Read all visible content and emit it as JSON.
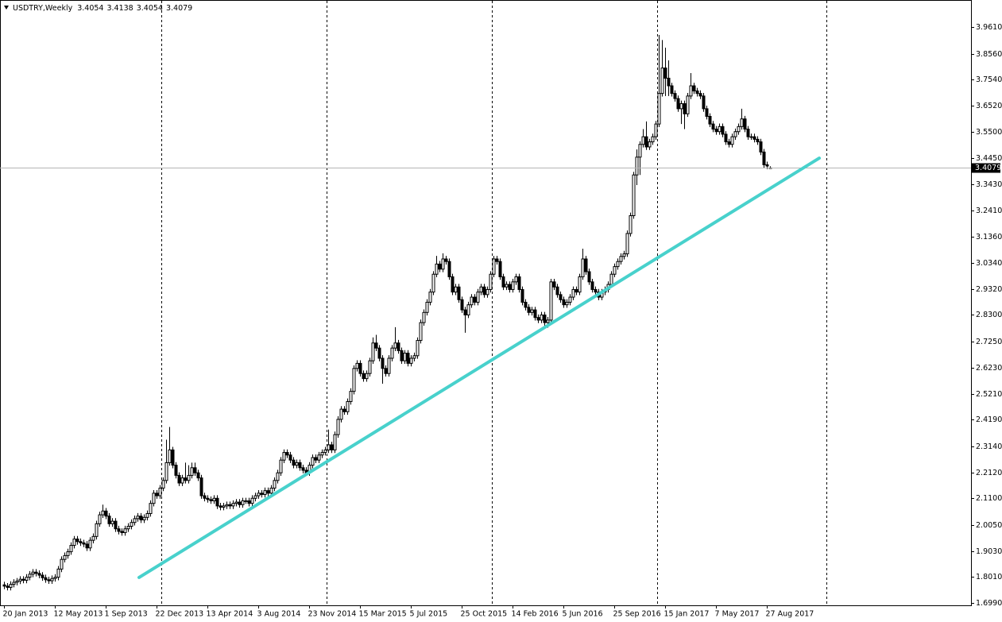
{
  "chart_data": {
    "type": "candlestick",
    "title": "USDTRY,Weekly",
    "color_up": "#ffffff",
    "color_down": "#000000",
    "wick_color": "#000000",
    "xlim": [
      -1.25,
      304.25
    ],
    "ylim": [
      1.6896,
      4.0671
    ],
    "yticks": [
      {
        "value": 3.961,
        "label": "3.9610"
      },
      {
        "value": 3.856,
        "label": "3.8560"
      },
      {
        "value": 3.754,
        "label": "3.7540"
      },
      {
        "value": 3.652,
        "label": "3.6520"
      },
      {
        "value": 3.55,
        "label": "3.5500"
      },
      {
        "value": 3.445,
        "label": "3.4450"
      },
      {
        "value": 3.343,
        "label": "3.3430"
      },
      {
        "value": 3.241,
        "label": "3.2410"
      },
      {
        "value": 3.136,
        "label": "3.1360"
      },
      {
        "value": 3.034,
        "label": "3.0340"
      },
      {
        "value": 2.932,
        "label": "2.9320"
      },
      {
        "value": 2.83,
        "label": "2.8300"
      },
      {
        "value": 2.725,
        "label": "2.7250"
      },
      {
        "value": 2.623,
        "label": "2.6230"
      },
      {
        "value": 2.521,
        "label": "2.5210"
      },
      {
        "value": 2.419,
        "label": "2.4190"
      },
      {
        "value": 2.314,
        "label": "2.3140"
      },
      {
        "value": 2.212,
        "label": "2.2120"
      },
      {
        "value": 2.11,
        "label": "2.1100"
      },
      {
        "value": 2.005,
        "label": "2.0050"
      },
      {
        "value": 1.903,
        "label": "1.9030"
      },
      {
        "value": 1.801,
        "label": "1.8010"
      },
      {
        "value": 1.699,
        "label": "1.6990"
      }
    ],
    "xticks": [
      {
        "value": 0,
        "label": "20 Jan 2013"
      },
      {
        "value": 16,
        "label": "12 May 2013"
      },
      {
        "value": 32,
        "label": "1 Sep 2013"
      },
      {
        "value": 48,
        "label": "22 Dec 2013"
      },
      {
        "value": 64,
        "label": "13 Apr 2014"
      },
      {
        "value": 80,
        "label": "3 Aug 2014"
      },
      {
        "value": 96,
        "label": "23 Nov 2014"
      },
      {
        "value": 112,
        "label": "15 Mar 2015"
      },
      {
        "value": 128,
        "label": "5 Jul 2015"
      },
      {
        "value": 144,
        "label": "25 Oct 2015"
      },
      {
        "value": 160,
        "label": "14 Feb 2016"
      },
      {
        "value": 176,
        "label": "5 Jun 2016"
      },
      {
        "value": 192,
        "label": "25 Sep 2016"
      },
      {
        "value": 208,
        "label": "15 Jan 2017"
      },
      {
        "value": 224,
        "label": "7 May 2017"
      },
      {
        "value": 240,
        "label": "27 Aug 2017"
      }
    ],
    "open": [
      1.77,
      1.765,
      1.76,
      1.772,
      1.78,
      1.785,
      1.792,
      1.788,
      1.8,
      1.812,
      1.82,
      1.815,
      1.808,
      1.798,
      1.79,
      1.786,
      1.795,
      1.8,
      1.832,
      1.87,
      1.885,
      1.9,
      1.925,
      1.95,
      1.94,
      1.935,
      1.93,
      1.915,
      1.945,
      1.96,
      2.01,
      2.045,
      2.06,
      2.04,
      2.01,
      2.02,
      1.99,
      1.98,
      1.975,
      1.99,
      2.0,
      2.015,
      2.03,
      2.04,
      2.025,
      2.035,
      2.05,
      2.09,
      2.13,
      2.12,
      2.15,
      2.18,
      2.25,
      2.3,
      2.24,
      2.2,
      2.17,
      2.19,
      2.18,
      2.2,
      2.23,
      2.21,
      2.19,
      2.12,
      2.11,
      2.105,
      2.1,
      2.11,
      2.08,
      2.075,
      2.08,
      2.085,
      2.08,
      2.09,
      2.095,
      2.085,
      2.1,
      2.1,
      2.09,
      2.11,
      2.12,
      2.13,
      2.125,
      2.14,
      2.13,
      2.15,
      2.18,
      2.21,
      2.26,
      2.29,
      2.28,
      2.26,
      2.24,
      2.25,
      2.23,
      2.22,
      2.21,
      2.24,
      2.27,
      2.26,
      2.28,
      2.29,
      2.3,
      2.32,
      2.3,
      2.36,
      2.42,
      2.46,
      2.45,
      2.49,
      2.53,
      2.62,
      2.64,
      2.6,
      2.58,
      2.6,
      2.65,
      2.72,
      2.7,
      2.66,
      2.62,
      2.6,
      2.66,
      2.7,
      2.72,
      2.69,
      2.65,
      2.68,
      2.64,
      2.66,
      2.67,
      2.73,
      2.8,
      2.84,
      2.88,
      2.92,
      2.99,
      3.03,
      3.01,
      3.05,
      3.04,
      2.98,
      2.92,
      2.94,
      2.89,
      2.85,
      2.83,
      2.87,
      2.9,
      2.88,
      2.92,
      2.94,
      2.91,
      2.93,
      2.99,
      3.05,
      3.04,
      2.98,
      2.94,
      2.95,
      2.93,
      2.96,
      2.98,
      2.93,
      2.88,
      2.86,
      2.84,
      2.85,
      2.82,
      2.81,
      2.83,
      2.8,
      2.81,
      2.96,
      2.94,
      2.91,
      2.89,
      2.87,
      2.88,
      2.9,
      2.93,
      2.92,
      2.98,
      3.05,
      3.0,
      2.96,
      2.93,
      2.92,
      2.9,
      2.92,
      2.93,
      2.95,
      2.99,
      3.02,
      3.04,
      3.06,
      3.07,
      3.15,
      3.22,
      3.38,
      3.45,
      3.5,
      3.53,
      3.49,
      3.51,
      3.53,
      3.58,
      3.7,
      3.8,
      3.76,
      3.73,
      3.7,
      3.68,
      3.64,
      3.66,
      3.62,
      3.69,
      3.73,
      3.71,
      3.7,
      3.69,
      3.64,
      3.61,
      3.58,
      3.56,
      3.55,
      3.57,
      3.54,
      3.51,
      3.5,
      3.53,
      3.55,
      3.57,
      3.6,
      3.56,
      3.53,
      3.53,
      3.52,
      3.51,
      3.47,
      3.42,
      3.4054
    ],
    "high": [
      1.782,
      1.777,
      1.784,
      1.792,
      1.797,
      1.804,
      1.804,
      1.812,
      1.824,
      1.832,
      1.832,
      1.827,
      1.82,
      1.81,
      1.802,
      1.807,
      1.812,
      1.844,
      1.882,
      1.897,
      1.912,
      1.937,
      1.962,
      1.962,
      1.952,
      1.947,
      1.942,
      1.957,
      1.972,
      2.022,
      2.057,
      2.085,
      2.072,
      2.052,
      2.032,
      2.032,
      2.002,
      1.992,
      2.002,
      2.012,
      2.027,
      2.042,
      2.052,
      2.052,
      2.047,
      2.062,
      2.102,
      2.142,
      2.142,
      2.162,
      2.192,
      2.34,
      2.39,
      2.312,
      2.252,
      2.212,
      2.202,
      2.25,
      2.24,
      2.25,
      2.25,
      2.222,
      2.202,
      2.132,
      2.122,
      2.117,
      2.122,
      2.122,
      2.092,
      2.092,
      2.097,
      2.097,
      2.102,
      2.107,
      2.107,
      2.112,
      2.112,
      2.112,
      2.122,
      2.132,
      2.142,
      2.142,
      2.152,
      2.152,
      2.162,
      2.192,
      2.222,
      2.272,
      2.302,
      2.302,
      2.292,
      2.272,
      2.262,
      2.262,
      2.242,
      2.232,
      2.252,
      2.282,
      2.282,
      2.292,
      2.302,
      2.312,
      2.38,
      2.332,
      2.372,
      2.432,
      2.472,
      2.472,
      2.502,
      2.542,
      2.632,
      2.652,
      2.652,
      2.612,
      2.612,
      2.662,
      2.742,
      2.752,
      2.712,
      2.672,
      2.632,
      2.672,
      2.712,
      2.782,
      2.732,
      2.702,
      2.692,
      2.692,
      2.672,
      2.682,
      2.742,
      2.812,
      2.852,
      2.892,
      2.932,
      3.002,
      3.062,
      3.042,
      3.072,
      3.062,
      3.052,
      2.992,
      2.952,
      2.952,
      2.902,
      2.862,
      2.882,
      2.912,
      2.912,
      2.932,
      2.952,
      2.952,
      2.942,
      3.002,
      3.062,
      3.062,
      3.052,
      2.992,
      2.962,
      2.962,
      2.972,
      2.992,
      2.992,
      2.942,
      2.892,
      2.872,
      2.862,
      2.862,
      2.832,
      2.842,
      2.842,
      2.822,
      2.972,
      2.972,
      2.952,
      2.922,
      2.902,
      2.892,
      2.912,
      2.942,
      2.942,
      2.992,
      3.09,
      3.062,
      3.012,
      2.972,
      2.942,
      2.932,
      2.932,
      2.942,
      2.962,
      3.002,
      3.032,
      3.052,
      3.072,
      3.082,
      3.162,
      3.232,
      3.392,
      3.48,
      3.512,
      3.56,
      3.59,
      3.522,
      3.542,
      3.592,
      3.93,
      3.91,
      3.88,
      3.83,
      3.742,
      3.712,
      3.692,
      3.672,
      3.672,
      3.702,
      3.78,
      3.742,
      3.722,
      3.712,
      3.702,
      3.652,
      3.622,
      3.592,
      3.572,
      3.582,
      3.582,
      3.552,
      3.522,
      3.542,
      3.562,
      3.582,
      3.64,
      3.612,
      3.572,
      3.542,
      3.542,
      3.532,
      3.522,
      3.482,
      3.432,
      3.4138
    ],
    "low": [
      1.753,
      1.748,
      1.748,
      1.76,
      1.768,
      1.773,
      1.776,
      1.776,
      1.788,
      1.8,
      1.803,
      1.796,
      1.786,
      1.778,
      1.774,
      1.774,
      1.783,
      1.788,
      1.82,
      1.858,
      1.873,
      1.888,
      1.913,
      1.928,
      1.923,
      1.918,
      1.903,
      1.903,
      1.933,
      1.948,
      1.998,
      2.033,
      2.028,
      1.998,
      1.998,
      1.978,
      1.968,
      1.963,
      1.963,
      1.978,
      1.988,
      2.003,
      2.018,
      2.013,
      2.013,
      2.023,
      2.038,
      2.078,
      2.108,
      2.108,
      2.138,
      2.168,
      2.238,
      2.228,
      2.188,
      2.158,
      2.158,
      2.168,
      2.168,
      2.188,
      2.198,
      2.178,
      2.108,
      2.098,
      2.093,
      2.088,
      2.088,
      2.068,
      2.063,
      2.063,
      2.068,
      2.068,
      2.068,
      2.078,
      2.073,
      2.073,
      2.088,
      2.078,
      2.078,
      2.098,
      2.108,
      2.113,
      2.113,
      2.118,
      2.118,
      2.138,
      2.168,
      2.198,
      2.248,
      2.268,
      2.248,
      2.228,
      2.228,
      2.218,
      2.208,
      2.198,
      2.198,
      2.228,
      2.248,
      2.248,
      2.268,
      2.278,
      2.288,
      2.288,
      2.288,
      2.348,
      2.408,
      2.438,
      2.438,
      2.478,
      2.518,
      2.608,
      2.588,
      2.568,
      2.568,
      2.588,
      2.638,
      2.688,
      2.648,
      2.56,
      2.588,
      2.588,
      2.648,
      2.688,
      2.678,
      2.638,
      2.638,
      2.628,
      2.628,
      2.648,
      2.658,
      2.718,
      2.788,
      2.828,
      2.868,
      2.908,
      2.978,
      2.998,
      2.998,
      3.028,
      2.968,
      2.908,
      2.908,
      2.878,
      2.838,
      2.76,
      2.818,
      2.858,
      2.868,
      2.868,
      2.908,
      2.898,
      2.898,
      2.918,
      2.978,
      3.028,
      2.968,
      2.928,
      2.928,
      2.918,
      2.918,
      2.948,
      2.918,
      2.868,
      2.848,
      2.828,
      2.828,
      2.808,
      2.798,
      2.798,
      2.788,
      2.78,
      2.798,
      2.928,
      2.898,
      2.878,
      2.858,
      2.858,
      2.868,
      2.888,
      2.908,
      2.908,
      2.968,
      2.988,
      2.948,
      2.918,
      2.908,
      2.888,
      2.888,
      2.908,
      2.918,
      2.938,
      2.978,
      3.008,
      3.028,
      3.048,
      3.058,
      3.138,
      3.208,
      3.34,
      3.38,
      3.488,
      3.478,
      3.478,
      3.498,
      3.518,
      3.568,
      3.688,
      3.69,
      3.69,
      3.688,
      3.668,
      3.628,
      3.58,
      3.56,
      3.608,
      3.678,
      3.698,
      3.688,
      3.678,
      3.628,
      3.598,
      3.568,
      3.548,
      3.538,
      3.538,
      3.528,
      3.498,
      3.488,
      3.488,
      3.518,
      3.538,
      3.558,
      3.548,
      3.518,
      3.518,
      3.508,
      3.498,
      3.458,
      3.408,
      3.403,
      3.4054
    ],
    "close": [
      1.765,
      1.76,
      1.772,
      1.78,
      1.785,
      1.792,
      1.788,
      1.8,
      1.812,
      1.82,
      1.815,
      1.808,
      1.798,
      1.79,
      1.786,
      1.795,
      1.8,
      1.832,
      1.87,
      1.885,
      1.9,
      1.925,
      1.95,
      1.94,
      1.935,
      1.93,
      1.915,
      1.945,
      1.96,
      2.01,
      2.045,
      2.06,
      2.04,
      2.01,
      2.02,
      1.99,
      1.98,
      1.975,
      1.99,
      2.0,
      2.015,
      2.03,
      2.04,
      2.025,
      2.035,
      2.05,
      2.09,
      2.13,
      2.12,
      2.15,
      2.18,
      2.25,
      2.3,
      2.24,
      2.2,
      2.17,
      2.19,
      2.18,
      2.2,
      2.23,
      2.21,
      2.19,
      2.12,
      2.11,
      2.105,
      2.1,
      2.11,
      2.08,
      2.075,
      2.08,
      2.085,
      2.08,
      2.09,
      2.095,
      2.085,
      2.1,
      2.1,
      2.09,
      2.11,
      2.12,
      2.13,
      2.125,
      2.14,
      2.13,
      2.15,
      2.18,
      2.21,
      2.26,
      2.29,
      2.28,
      2.26,
      2.24,
      2.25,
      2.23,
      2.22,
      2.21,
      2.24,
      2.27,
      2.26,
      2.28,
      2.29,
      2.3,
      2.32,
      2.3,
      2.36,
      2.42,
      2.46,
      2.45,
      2.49,
      2.53,
      2.62,
      2.64,
      2.6,
      2.58,
      2.6,
      2.65,
      2.72,
      2.7,
      2.66,
      2.62,
      2.6,
      2.66,
      2.7,
      2.72,
      2.69,
      2.65,
      2.68,
      2.64,
      2.66,
      2.67,
      2.73,
      2.8,
      2.84,
      2.88,
      2.92,
      2.99,
      3.03,
      3.01,
      3.05,
      3.04,
      2.98,
      2.92,
      2.94,
      2.89,
      2.85,
      2.83,
      2.87,
      2.9,
      2.88,
      2.92,
      2.94,
      2.91,
      2.93,
      2.99,
      3.05,
      3.04,
      2.98,
      2.94,
      2.95,
      2.93,
      2.96,
      2.98,
      2.93,
      2.88,
      2.86,
      2.84,
      2.85,
      2.82,
      2.81,
      2.83,
      2.8,
      2.81,
      2.96,
      2.94,
      2.91,
      2.89,
      2.87,
      2.88,
      2.9,
      2.93,
      2.92,
      2.98,
      3.05,
      3.0,
      2.96,
      2.93,
      2.92,
      2.9,
      2.92,
      2.93,
      2.95,
      2.99,
      3.02,
      3.04,
      3.06,
      3.07,
      3.15,
      3.22,
      3.38,
      3.45,
      3.5,
      3.53,
      3.49,
      3.51,
      3.53,
      3.58,
      3.7,
      3.8,
      3.76,
      3.73,
      3.7,
      3.68,
      3.64,
      3.66,
      3.62,
      3.69,
      3.73,
      3.71,
      3.7,
      3.69,
      3.64,
      3.61,
      3.58,
      3.56,
      3.55,
      3.57,
      3.54,
      3.51,
      3.5,
      3.53,
      3.55,
      3.57,
      3.6,
      3.56,
      3.53,
      3.53,
      3.52,
      3.51,
      3.47,
      3.42,
      3.415,
      3.4079
    ],
    "trendline": {
      "x": [
        42.5,
        256.5
      ],
      "y": [
        1.799,
        3.446
      ],
      "color": "#48d1cc"
    }
  }
}
